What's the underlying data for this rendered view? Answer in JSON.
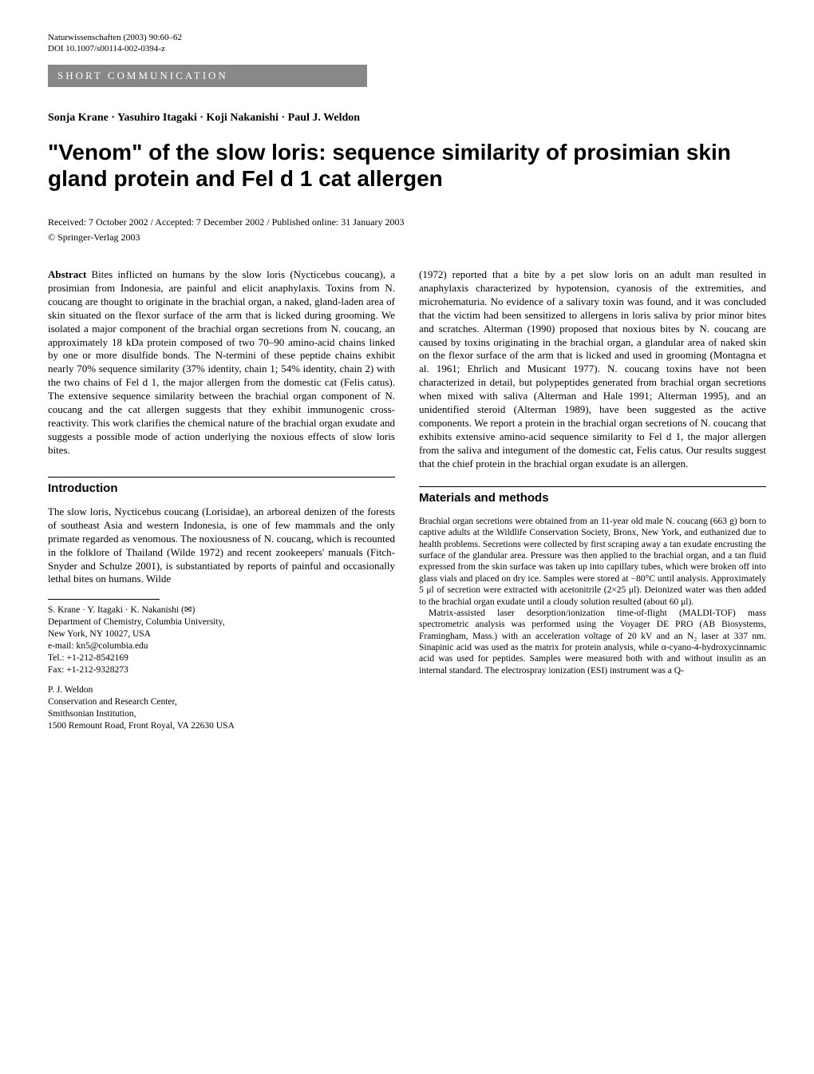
{
  "meta": {
    "journal_line": "Naturwissenschaften (2003) 90:60–62",
    "doi_line": "DOI 10.1007/s00114-002-0394-z"
  },
  "banner": "SHORT COMMUNICATION",
  "authors": "Sonja Krane · Yasuhiro Itagaki · Koji Nakanishi · Paul J. Weldon",
  "title": "\"Venom\" of the slow loris: sequence similarity of prosimian skin gland protein and Fel d 1 cat allergen",
  "received": "Received: 7 October 2002 / Accepted: 7 December 2002 / Published online: 31 January 2003",
  "copyright": "© Springer-Verlag 2003",
  "abstract_label": "Abstract",
  "abstract": " Bites inflicted on humans by the slow loris (Nycticebus coucang), a prosimian from Indonesia, are painful and elicit anaphylaxis. Toxins from N. coucang are thought to originate in the brachial organ, a naked, gland-laden area of skin situated on the flexor surface of the arm that is licked during grooming. We isolated a major component of the brachial organ secretions from N. coucang, an approximately 18 kDa protein composed of two 70–90 amino-acid chains linked by one or more disulfide bonds. The N-termini of these peptide chains exhibit nearly 70% sequence similarity (37% identity, chain 1; 54% identity, chain 2) with the two chains of Fel d 1, the major allergen from the domestic cat (Felis catus). The extensive sequence similarity between the brachial organ component of N. coucang and the cat allergen suggests that they exhibit immunogenic cross-reactivity. This work clarifies the chemical nature of the brachial organ exudate and suggests a possible mode of action underlying the noxious effects of slow loris bites.",
  "intro_heading": "Introduction",
  "intro_text": "The slow loris, Nycticebus coucang (Lorisidae), an arboreal denizen of the forests of southeast Asia and western Indonesia, is one of few mammals and the only primate regarded as venomous. The noxiousness of N. coucang, which is recounted in the folklore of Thailand (Wilde 1972) and recent zookeepers' manuals (Fitch-Snyder and Schulze 2001), is substantiated by reports of painful and occasionally lethal bites on humans. Wilde",
  "right_col_text": "(1972) reported that a bite by a pet slow loris on an adult man resulted in anaphylaxis characterized by hypotension, cyanosis of the extremities, and microhematuria. No evidence of a salivary toxin was found, and it was concluded that the victim had been sensitized to allergens in loris saliva by prior minor bites and scratches. Alterman (1990) proposed that noxious bites by N. coucang are caused by toxins originating in the brachial organ, a glandular area of naked skin on the flexor surface of the arm that is licked and used in grooming (Montagna et al. 1961; Ehrlich and Musicant 1977). N. coucang toxins have not been characterized in detail, but polypeptides generated from brachial organ secretions when mixed with saliva (Alterman and Hale 1991; Alterman 1995), and an unidentified steroid (Alterman 1989), have been suggested as the active components. We report a protein in the brachial organ secretions of N. coucang that exhibits extensive amino-acid sequence similarity to Fel d 1, the major allergen from the saliva and integument of the domestic cat, Felis catus. Our results suggest that the chief protein in the brachial organ exudate is an allergen.",
  "methods_heading": "Materials and methods",
  "methods_p1": "Brachial organ secretions were obtained from an 11-year old male N. coucang (663 g) born to captive adults at the Wildlife Conservation Society, Bronx, New York, and euthanized due to health problems. Secretions were collected by first scraping away a tan exudate encrusting the surface of the glandular area. Pressure was then applied to the brachial organ, and a tan fluid expressed from the skin surface was taken up into capillary tubes, which were broken off into glass vials and placed on dry ice. Samples were stored at −80°C until analysis. Approximately 5 μl of secretion were extracted with acetonitrile (2×25 μl). Deionized water was then added to the brachial organ exudate until a cloudy solution resulted (about 60 μl).",
  "methods_p2": "Matrix-assisted laser desorption/ionization time-of-flight (MALDI-TOF) mass spectrometric analysis was performed using the Voyager DE PRO (AB Biosystems, Framingham, Mass.) with an acceleration voltage of 20 kV and an N₂ laser at 337 nm. Sinapinic acid was used as the matrix for protein analysis, while α-cyano-4-hydroxycinnamic acid was used for peptides. Samples were measured both with and without insulin as an internal standard. The electrospray ionization (ESI) instrument was a Q-",
  "footnote1": {
    "line1": "S. Krane · Y. Itagaki · K. Nakanishi (✉)",
    "line2": "Department of Chemistry, Columbia University,",
    "line3": "New York, NY 10027, USA",
    "line4": "e-mail: kn5@columbia.edu",
    "line5": "Tel.: +1-212-8542169",
    "line6": "Fax: +1-212-9328273"
  },
  "footnote2": {
    "line1": "P. J. Weldon",
    "line2": "Conservation and Research Center,",
    "line3": "Smithsonian Institution,",
    "line4": "1500 Remount Road, Front Royal, VA 22630 USA"
  }
}
